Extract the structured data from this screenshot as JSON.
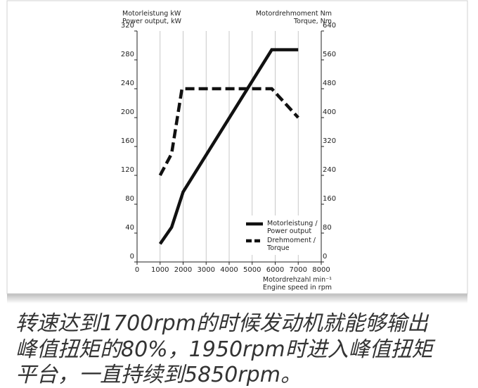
{
  "chart_data": {
    "type": "line",
    "y_label": "Motorleistung kW\nPower output, kW",
    "y2_label": "Motordrehmoment Nm\nTorque, Nm",
    "x_label": "Motordrehzahl min⁻¹\nEngine speed in rpm",
    "xlim": [
      0,
      8000
    ],
    "xticks": [
      0,
      1000,
      2000,
      3000,
      4000,
      5000,
      6000,
      7000,
      8000
    ],
    "ylim": [
      0,
      320
    ],
    "yticks": [
      0,
      40,
      80,
      120,
      160,
      200,
      240,
      280,
      320
    ],
    "y2lim": [
      0,
      640
    ],
    "y2ticks": [
      0,
      80,
      160,
      240,
      320,
      400,
      480,
      560,
      640
    ],
    "grid": true,
    "legend": "lower right",
    "series": [
      {
        "name": "Motorleistung /\nPower output",
        "color": "#111111",
        "dash": "solid",
        "x": [
          1000,
          1500,
          2000,
          5850,
          7000
        ],
        "values": [
          25,
          48,
          97,
          294,
          294
        ]
      },
      {
        "name": "Drehmoment /\nTorque",
        "color": "#111111",
        "dash": "dashed",
        "axis": "y2",
        "x": [
          1000,
          1500,
          1950,
          5850,
          7000
        ],
        "values": [
          240,
          300,
          480,
          480,
          400
        ]
      }
    ]
  },
  "caption": {
    "lines": [
      "转速达到1700rpm的时候发动机就能够输出",
      "峰值扭矩的80%，1950rpm时进入峰值扭矩",
      "平台，一直持续到5850rpm。"
    ]
  }
}
